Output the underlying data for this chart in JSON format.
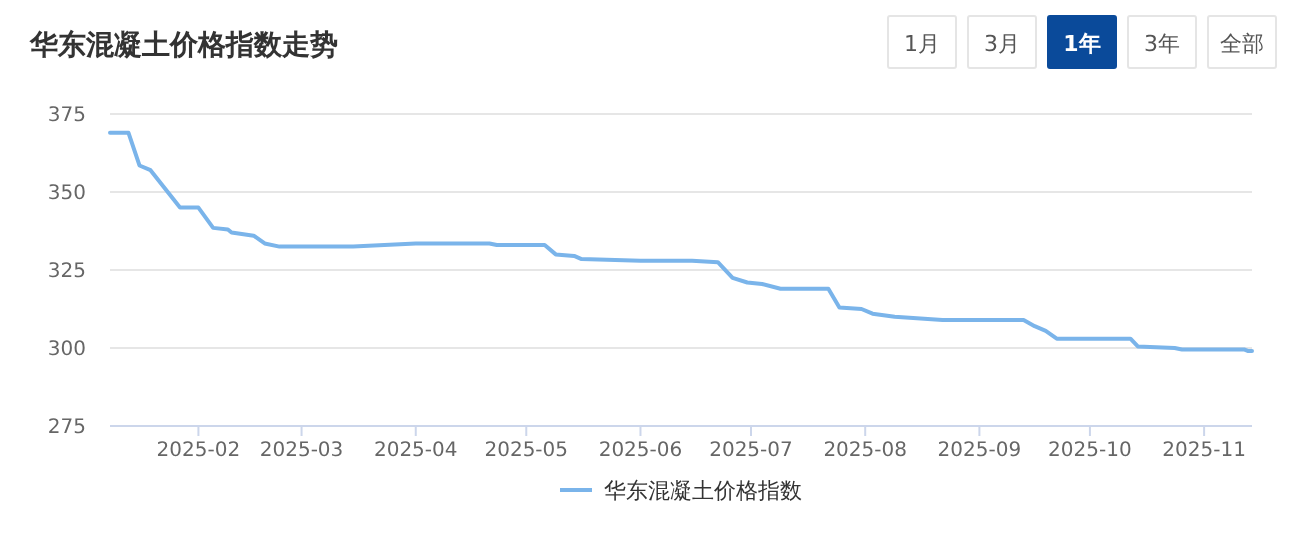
{
  "chart_data": {
    "type": "line",
    "title": "华东混凝土价格指数走势",
    "annotations": [
      "1月",
      "3月",
      "1年",
      "3年",
      "全部"
    ],
    "series": [
      {
        "name": "华东混凝土价格指数",
        "color": "#7ab4ea",
        "x": [
          "2025-01-08",
          "2025-01-13",
          "2025-01-16",
          "2025-01-19",
          "2025-01-27",
          "2025-02-01",
          "2025-02-05",
          "2025-02-09",
          "2025-02-10",
          "2025-02-16",
          "2025-02-19",
          "2025-02-23",
          "2025-03-15",
          "2025-04-01",
          "2025-04-21",
          "2025-04-23",
          "2025-05-06",
          "2025-05-09",
          "2025-05-14",
          "2025-05-16",
          "2025-06-01",
          "2025-06-15",
          "2025-06-22",
          "2025-06-26",
          "2025-06-30",
          "2025-07-04",
          "2025-07-09",
          "2025-07-22",
          "2025-07-25",
          "2025-07-31",
          "2025-08-03",
          "2025-08-09",
          "2025-08-22",
          "2025-09-13",
          "2025-09-16",
          "2025-09-19",
          "2025-09-22",
          "2025-10-12",
          "2025-10-14",
          "2025-10-24",
          "2025-10-26",
          "2025-11-12",
          "2025-11-13",
          "2025-11-14"
        ],
        "values": [
          369,
          369,
          358.5,
          357,
          345,
          345,
          338.5,
          338,
          337,
          336,
          333.5,
          332.5,
          332.5,
          333.5,
          333.5,
          333,
          333,
          330,
          329.5,
          328.5,
          328,
          328,
          327.5,
          322.5,
          321,
          320.5,
          319,
          319,
          313,
          312.5,
          311,
          310,
          309,
          309,
          307,
          305.5,
          303,
          303,
          300.5,
          300,
          299.5,
          299.5,
          299,
          299
        ]
      }
    ],
    "xlim": [
      "2025-01-08",
      "2025-11-14"
    ],
    "xticks": [
      "2025-02",
      "2025-03",
      "2025-04",
      "2025-05",
      "2025-06",
      "2025-07",
      "2025-08",
      "2025-09",
      "2025-10",
      "2025-11"
    ],
    "ylim": [
      275,
      375
    ],
    "yticks": [
      275,
      300,
      325,
      350,
      375
    ],
    "grid": "y",
    "legend": "bottom",
    "marker": "none",
    "line_style": "solid"
  }
}
